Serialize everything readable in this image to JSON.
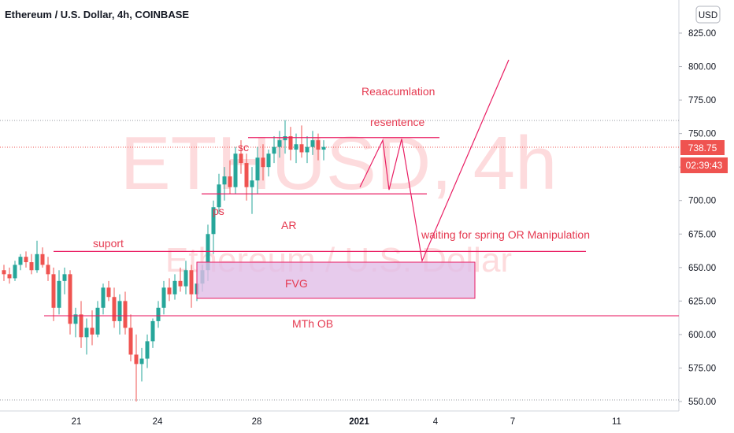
{
  "header": {
    "title": "Ethereum / U.S. Dollar, 4h, COINBASE",
    "currency": "USD"
  },
  "watermark": {
    "line1": "ETHUSD, 4h",
    "line2": "Ethereum / U.S. Dollar"
  },
  "price_labels": {
    "last": "738.75",
    "countdown": "02:39:43"
  },
  "colors": {
    "up": "#26a69a",
    "down": "#ef5350",
    "drawing": "#e91e63",
    "annotation": "#e53950",
    "fvg_fill": "#e1bee7"
  },
  "chart_data": {
    "type": "candlestick",
    "title": "Ethereum / U.S. Dollar, 4h, COINBASE",
    "symbol": "ETHUSD",
    "interval": "4h",
    "exchange": "COINBASE",
    "currency": "USD",
    "y_ticks": [
      550,
      575,
      600,
      625,
      650,
      675,
      700,
      725,
      750,
      775,
      800,
      825
    ],
    "y_tick_labels": [
      "550.00",
      "575.00",
      "600.00",
      "625.00",
      "650.00",
      "675.00",
      "700.00",
      "725.00",
      "750.00",
      "775.00",
      "800.00",
      "825.00"
    ],
    "ylim": [
      546,
      840
    ],
    "x_tick_labels": [
      "21",
      "24",
      "28",
      "2021",
      "4",
      "7",
      "11"
    ],
    "x_tick_bars": [
      15,
      33,
      56,
      73,
      85,
      103,
      126
    ],
    "last_price": 738.75,
    "candles_ohlc": [
      [
        648,
        652,
        640,
        645
      ],
      [
        645,
        650,
        638,
        642
      ],
      [
        642,
        655,
        640,
        652
      ],
      [
        652,
        660,
        648,
        658
      ],
      [
        658,
        662,
        650,
        654
      ],
      [
        654,
        660,
        645,
        648
      ],
      [
        648,
        670,
        646,
        660
      ],
      [
        660,
        665,
        650,
        652
      ],
      [
        652,
        658,
        640,
        645
      ],
      [
        645,
        650,
        610,
        620
      ],
      [
        620,
        648,
        615,
        640
      ],
      [
        640,
        650,
        630,
        645
      ],
      [
        645,
        648,
        600,
        608
      ],
      [
        608,
        620,
        598,
        615
      ],
      [
        615,
        625,
        590,
        598
      ],
      [
        598,
        612,
        585,
        605
      ],
      [
        605,
        618,
        592,
        600
      ],
      [
        600,
        625,
        598,
        620
      ],
      [
        620,
        638,
        615,
        635
      ],
      [
        635,
        640,
        625,
        628
      ],
      [
        628,
        635,
        605,
        610
      ],
      [
        610,
        630,
        600,
        625
      ],
      [
        625,
        632,
        600,
        605
      ],
      [
        605,
        615,
        580,
        585
      ],
      [
        585,
        600,
        550,
        578
      ],
      [
        578,
        590,
        565,
        582
      ],
      [
        582,
        600,
        575,
        595
      ],
      [
        595,
        612,
        590,
        610
      ],
      [
        610,
        625,
        605,
        620
      ],
      [
        620,
        640,
        615,
        635
      ],
      [
        635,
        642,
        625,
        630
      ],
      [
        630,
        645,
        626,
        640
      ],
      [
        640,
        650,
        632,
        636
      ],
      [
        636,
        655,
        630,
        648
      ],
      [
        648,
        652,
        620,
        630
      ],
      [
        630,
        642,
        625,
        638
      ],
      [
        638,
        652,
        632,
        648
      ],
      [
        648,
        682,
        640,
        675
      ],
      [
        675,
        700,
        660,
        695
      ],
      [
        695,
        720,
        690,
        712
      ],
      [
        712,
        725,
        700,
        718
      ],
      [
        718,
        730,
        705,
        710
      ],
      [
        710,
        740,
        705,
        735
      ],
      [
        735,
        745,
        720,
        728
      ],
      [
        728,
        735,
        700,
        710
      ],
      [
        710,
        725,
        690,
        715
      ],
      [
        715,
        740,
        705,
        732
      ],
      [
        732,
        742,
        715,
        725
      ],
      [
        725,
        738,
        718,
        735
      ],
      [
        735,
        748,
        728,
        740
      ],
      [
        740,
        752,
        732,
        745
      ],
      [
        745,
        760,
        735,
        748
      ],
      [
        748,
        755,
        730,
        738
      ],
      [
        738,
        750,
        728,
        742
      ],
      [
        742,
        756,
        732,
        736
      ],
      [
        736,
        748,
        728,
        740
      ],
      [
        740,
        752,
        734,
        745
      ],
      [
        745,
        750,
        730,
        738
      ],
      [
        738,
        745,
        730,
        740
      ]
    ]
  },
  "drawings": {
    "horizontal_lines": [
      {
        "name": "resistance",
        "price": 747
      },
      {
        "name": "sc-level",
        "price": 705
      },
      {
        "name": "support",
        "price": 662
      },
      {
        "name": "mth-ob",
        "price": 614
      }
    ],
    "fvg_box": {
      "price_top": 654,
      "price_bottom": 627
    },
    "projection_path": [
      {
        "bar": 56,
        "price": 710
      },
      {
        "bar": 59,
        "price": 745
      },
      {
        "bar": 62,
        "price": 708
      },
      {
        "bar": 65,
        "price": 746
      },
      {
        "bar": 71,
        "price": 655
      },
      {
        "bar": 83,
        "price": 805
      }
    ],
    "annotations": [
      {
        "id": "reaccumulation",
        "text": "Reaacumlation"
      },
      {
        "id": "resistance",
        "text": "resentence"
      },
      {
        "id": "sc",
        "text": "sc"
      },
      {
        "id": "ps",
        "text": "ps"
      },
      {
        "id": "ar",
        "text": "AR"
      },
      {
        "id": "spring",
        "text": "waiting for spring OR Manipulation"
      },
      {
        "id": "support",
        "text": "suport"
      },
      {
        "id": "fvg",
        "text": "FVG"
      },
      {
        "id": "mth-ob",
        "text": "MTh OB"
      }
    ]
  }
}
